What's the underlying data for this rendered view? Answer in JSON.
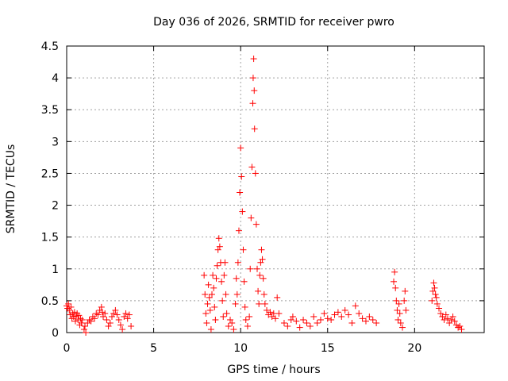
{
  "chart_data": {
    "type": "scatter",
    "title": "Day 036 of 2026, SRMTID for receiver pwro",
    "xlabel": "GPS time / hours",
    "ylabel": "SRMTID / TECUs",
    "xlim": [
      0,
      24
    ],
    "ylim": [
      0,
      4.5
    ],
    "grid": true,
    "marker": "+",
    "color": "#ff0000",
    "xticks": [
      0,
      5,
      10,
      15,
      20
    ],
    "xtick_labels": [
      "0",
      "5",
      "10",
      "15",
      "20"
    ],
    "yticks": [
      0,
      0.5,
      1,
      1.5,
      2,
      2.5,
      3,
      3.5,
      4,
      4.5
    ],
    "ytick_labels": [
      "0",
      "0.5",
      "1",
      "1.5",
      "2",
      "2.5",
      "3",
      "3.5",
      "4",
      "4.5"
    ],
    "series": [
      {
        "name": "SRMTID",
        "points": [
          [
            0.0,
            0.42
          ],
          [
            0.05,
            0.38
          ],
          [
            0.1,
            0.45
          ],
          [
            0.15,
            0.35
          ],
          [
            0.2,
            0.28
          ],
          [
            0.25,
            0.4
          ],
          [
            0.3,
            0.22
          ],
          [
            0.35,
            0.3
          ],
          [
            0.4,
            0.25
          ],
          [
            0.45,
            0.32
          ],
          [
            0.5,
            0.18
          ],
          [
            0.55,
            0.26
          ],
          [
            0.6,
            0.3
          ],
          [
            0.65,
            0.2
          ],
          [
            0.7,
            0.27
          ],
          [
            0.75,
            0.12
          ],
          [
            0.8,
            0.22
          ],
          [
            0.85,
            0.15
          ],
          [
            0.9,
            0.2
          ],
          [
            1.0,
            0.05
          ],
          [
            1.05,
            0.1
          ],
          [
            1.1,
            0.0
          ],
          [
            1.2,
            0.15
          ],
          [
            1.3,
            0.2
          ],
          [
            1.4,
            0.18
          ],
          [
            1.5,
            0.25
          ],
          [
            1.6,
            0.22
          ],
          [
            1.7,
            0.3
          ],
          [
            1.8,
            0.28
          ],
          [
            1.9,
            0.35
          ],
          [
            2.0,
            0.4
          ],
          [
            2.05,
            0.32
          ],
          [
            2.1,
            0.25
          ],
          [
            2.2,
            0.3
          ],
          [
            2.3,
            0.2
          ],
          [
            2.4,
            0.1
          ],
          [
            2.5,
            0.15
          ],
          [
            2.6,
            0.25
          ],
          [
            2.7,
            0.3
          ],
          [
            2.8,
            0.35
          ],
          [
            2.9,
            0.28
          ],
          [
            3.0,
            0.2
          ],
          [
            3.1,
            0.12
          ],
          [
            3.2,
            0.05
          ],
          [
            3.3,
            0.25
          ],
          [
            3.4,
            0.3
          ],
          [
            3.5,
            0.22
          ],
          [
            3.6,
            0.28
          ],
          [
            3.7,
            0.1
          ],
          [
            7.9,
            0.9
          ],
          [
            7.95,
            0.6
          ],
          [
            8.0,
            0.3
          ],
          [
            8.05,
            0.15
          ],
          [
            8.1,
            0.45
          ],
          [
            8.15,
            0.75
          ],
          [
            8.2,
            0.55
          ],
          [
            8.25,
            0.35
          ],
          [
            8.3,
            0.05
          ],
          [
            8.35,
            0.6
          ],
          [
            8.4,
            0.9
          ],
          [
            8.45,
            0.7
          ],
          [
            8.5,
            0.4
          ],
          [
            8.55,
            0.2
          ],
          [
            8.6,
            0.85
          ],
          [
            8.65,
            1.05
          ],
          [
            8.7,
            1.3
          ],
          [
            8.75,
            1.48
          ],
          [
            8.8,
            1.35
          ],
          [
            8.85,
            1.1
          ],
          [
            8.9,
            0.8
          ],
          [
            8.95,
            0.5
          ],
          [
            9.0,
            0.25
          ],
          [
            9.05,
            0.9
          ],
          [
            9.1,
            1.1
          ],
          [
            9.15,
            0.6
          ],
          [
            9.2,
            0.3
          ],
          [
            9.3,
            0.1
          ],
          [
            9.4,
            0.2
          ],
          [
            9.5,
            0.15
          ],
          [
            9.6,
            0.05
          ],
          [
            9.7,
            0.45
          ],
          [
            9.75,
            0.85
          ],
          [
            9.8,
            0.6
          ],
          [
            9.85,
            1.1
          ],
          [
            9.9,
            1.6
          ],
          [
            9.95,
            2.2
          ],
          [
            10.0,
            2.9
          ],
          [
            10.05,
            2.45
          ],
          [
            10.1,
            1.9
          ],
          [
            10.15,
            1.3
          ],
          [
            10.2,
            0.8
          ],
          [
            10.25,
            0.4
          ],
          [
            10.3,
            0.2
          ],
          [
            10.4,
            0.1
          ],
          [
            10.5,
            0.25
          ],
          [
            10.55,
            1.0
          ],
          [
            10.6,
            1.8
          ],
          [
            10.65,
            2.6
          ],
          [
            10.7,
            3.6
          ],
          [
            10.72,
            4.0
          ],
          [
            10.75,
            4.3
          ],
          [
            10.78,
            3.8
          ],
          [
            10.8,
            3.2
          ],
          [
            10.85,
            2.5
          ],
          [
            10.9,
            1.7
          ],
          [
            10.95,
            1.0
          ],
          [
            11.0,
            0.65
          ],
          [
            11.05,
            0.45
          ],
          [
            11.1,
            0.9
          ],
          [
            11.15,
            1.1
          ],
          [
            11.2,
            1.3
          ],
          [
            11.25,
            1.15
          ],
          [
            11.3,
            0.85
          ],
          [
            11.35,
            0.6
          ],
          [
            11.4,
            0.45
          ],
          [
            11.5,
            0.35
          ],
          [
            11.6,
            0.28
          ],
          [
            11.7,
            0.32
          ],
          [
            11.8,
            0.25
          ],
          [
            11.9,
            0.3
          ],
          [
            12.0,
            0.22
          ],
          [
            12.1,
            0.55
          ],
          [
            12.2,
            0.3
          ],
          [
            12.5,
            0.15
          ],
          [
            12.7,
            0.1
          ],
          [
            12.9,
            0.2
          ],
          [
            13.0,
            0.25
          ],
          [
            13.2,
            0.18
          ],
          [
            13.4,
            0.08
          ],
          [
            13.6,
            0.2
          ],
          [
            13.8,
            0.15
          ],
          [
            14.0,
            0.1
          ],
          [
            14.2,
            0.25
          ],
          [
            14.4,
            0.15
          ],
          [
            14.6,
            0.2
          ],
          [
            14.8,
            0.3
          ],
          [
            15.0,
            0.22
          ],
          [
            15.2,
            0.2
          ],
          [
            15.4,
            0.28
          ],
          [
            15.6,
            0.32
          ],
          [
            15.8,
            0.25
          ],
          [
            16.0,
            0.35
          ],
          [
            16.2,
            0.28
          ],
          [
            16.4,
            0.15
          ],
          [
            16.6,
            0.42
          ],
          [
            16.8,
            0.3
          ],
          [
            17.0,
            0.22
          ],
          [
            17.2,
            0.18
          ],
          [
            17.4,
            0.25
          ],
          [
            17.6,
            0.2
          ],
          [
            17.8,
            0.15
          ],
          [
            18.8,
            0.8
          ],
          [
            18.85,
            0.95
          ],
          [
            18.9,
            0.7
          ],
          [
            18.95,
            0.5
          ],
          [
            19.0,
            0.35
          ],
          [
            19.05,
            0.2
          ],
          [
            19.1,
            0.45
          ],
          [
            19.15,
            0.3
          ],
          [
            19.2,
            0.15
          ],
          [
            19.3,
            0.08
          ],
          [
            19.4,
            0.5
          ],
          [
            19.45,
            0.65
          ],
          [
            19.5,
            0.35
          ],
          [
            21.0,
            0.5
          ],
          [
            21.05,
            0.65
          ],
          [
            21.1,
            0.78
          ],
          [
            21.15,
            0.7
          ],
          [
            21.2,
            0.6
          ],
          [
            21.25,
            0.55
          ],
          [
            21.3,
            0.45
          ],
          [
            21.4,
            0.38
          ],
          [
            21.5,
            0.3
          ],
          [
            21.6,
            0.25
          ],
          [
            21.7,
            0.2
          ],
          [
            21.8,
            0.28
          ],
          [
            21.9,
            0.22
          ],
          [
            22.0,
            0.15
          ],
          [
            22.1,
            0.2
          ],
          [
            22.2,
            0.25
          ],
          [
            22.3,
            0.18
          ],
          [
            22.4,
            0.12
          ],
          [
            22.5,
            0.08
          ],
          [
            22.6,
            0.1
          ],
          [
            22.7,
            0.05
          ]
        ]
      }
    ]
  }
}
